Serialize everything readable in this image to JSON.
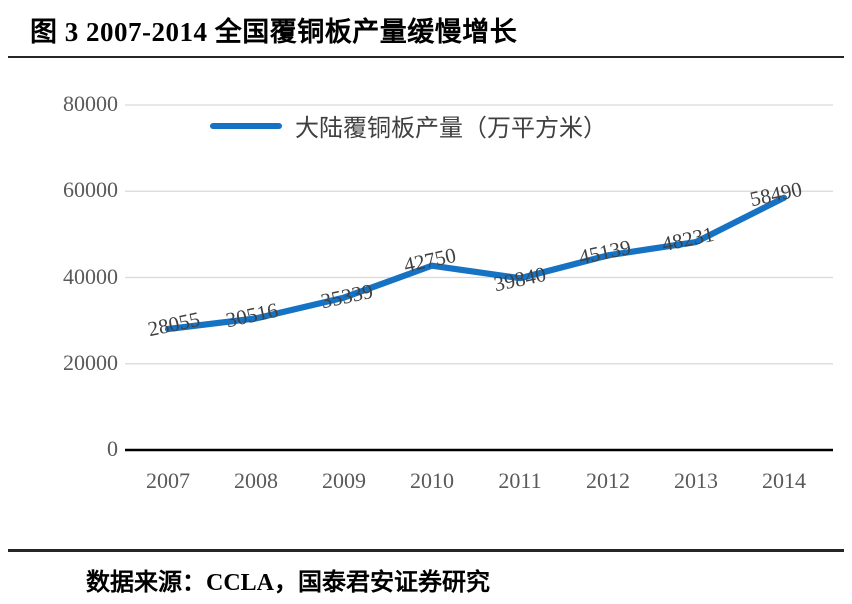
{
  "page": {
    "title": "图 3 2007-2014 全国覆铜板产量缓慢增长",
    "source": "数据来源：CCLA，国泰君安证券研究"
  },
  "legend": {
    "label": "大陆覆铜板产量（万平方米）"
  },
  "colors": {
    "line": "#1673C4",
    "grid": "#D9D9D9",
    "axis": "#000000",
    "tick_text": "#595959",
    "data_label_text": "#404040",
    "title_text": "#000000"
  },
  "chart_data": {
    "type": "line",
    "title": "图 3 2007-2014 全国覆铜板产量缓慢增长",
    "categories": [
      "2007",
      "2008",
      "2009",
      "2010",
      "2011",
      "2012",
      "2013",
      "2014"
    ],
    "series": [
      {
        "name": "大陆覆铜板产量（万平方米）",
        "values": [
          28055,
          30516,
          35339,
          42750,
          39840,
          45139,
          48231,
          58490
        ]
      }
    ],
    "xlabel": "",
    "ylabel": "",
    "ylim": [
      0,
      80000
    ],
    "yticks": [
      0,
      20000,
      40000,
      60000,
      80000
    ],
    "grid": true,
    "legend_position": "top-center",
    "data_labels": true,
    "data_label_rotation_deg": -12,
    "source": "数据来源：CCLA，国泰君安证券研究"
  }
}
